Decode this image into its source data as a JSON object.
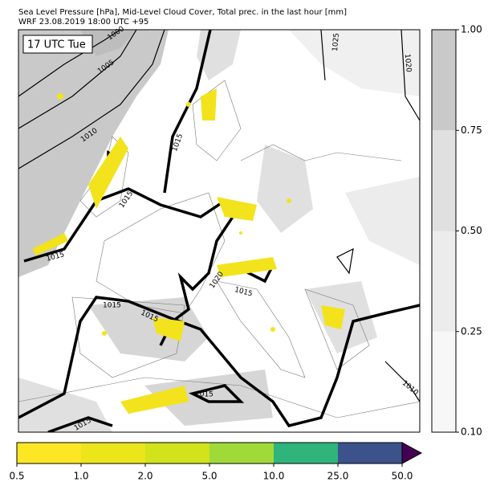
{
  "header": {
    "line1": "Sea Level Pressure [hPa], Mid-Level Cloud Cover, Total prec. in the last hour [mm]",
    "line2": "WRF 23.08.2019 18:00 UTC +95"
  },
  "time_label": "17 UTC Tue",
  "isobar_labels": [
    "1000",
    "1005",
    "1010",
    "1015",
    "1015",
    "1015",
    "1020",
    "1015",
    "1015",
    "1015",
    "1015",
    "1025",
    "1020",
    "1010",
    "1015"
  ],
  "cloud_colorbar": {
    "levels": [
      {
        "value": 0.1,
        "label": "0.10"
      },
      {
        "value": 0.25,
        "label": "0.25"
      },
      {
        "value": 0.5,
        "label": "0.50"
      },
      {
        "value": 0.75,
        "label": "0.75"
      },
      {
        "value": 1,
        "label": "1.00"
      }
    ],
    "colors": [
      "#f7f7f7",
      "#ececec",
      "#e0e0e0",
      "#c9c9c9"
    ]
  },
  "precip_colorbar": {
    "levels": [
      0.5,
      {
        "value": 1,
        "label": "1.0"
      },
      {
        "value": 2,
        "label": "2.0"
      },
      {
        "value": 5,
        "label": "5.0"
      },
      {
        "value": 10,
        "label": "10.0"
      },
      {
        "value": 25,
        "label": "25.0"
      },
      {
        "value": 50,
        "label": "50.0"
      }
    ],
    "colors": [
      "#fde725",
      "#ece51b",
      "#d2e21b",
      "#a0da39",
      "#2fb47c",
      "#3b528b"
    ],
    "extend_color": "#440154"
  }
}
